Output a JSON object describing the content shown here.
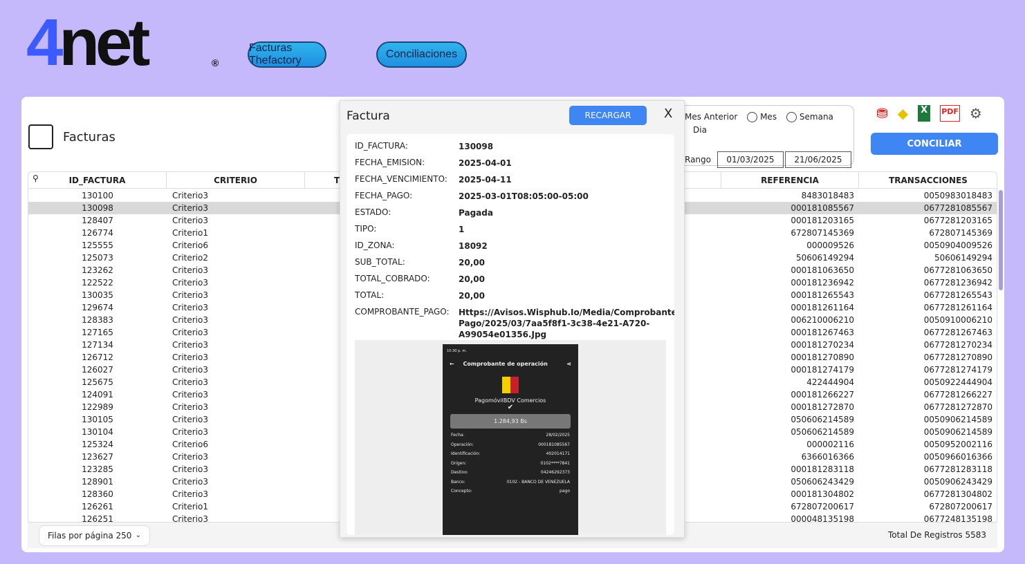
{
  "brand": {
    "logo_text": "4net",
    "registered": "®"
  },
  "nav": {
    "facturas": "Facturas Thefactory",
    "conciliaciones": "Conciliaciones"
  },
  "page": {
    "title": "Facturas"
  },
  "filter": {
    "mes_anterior": "Mes Anterior",
    "mes": "Mes",
    "semana": "Semana",
    "dia": "Dia",
    "rango": "Rango",
    "desde": "01/03/2025",
    "hasta": "21/06/2025"
  },
  "toolbar": {
    "conciliar": "CONCILIAR",
    "icons": [
      "bank-icon",
      "bdv-icon",
      "excel-icon",
      "pdf-icon",
      "gear-icon"
    ]
  },
  "table": {
    "headers": {
      "id": "ID_FACTURA",
      "criterio": "CRITERIO",
      "t": "T",
      "referencia": "REFERENCIA",
      "transacciones": "TRANSACCIONES"
    },
    "selected_index": 1,
    "rows": [
      [
        "130100",
        "Criterio3",
        "8483018483",
        "0050983018483"
      ],
      [
        "130098",
        "Criterio3",
        "000181085567",
        "0677281085567"
      ],
      [
        "128407",
        "Criterio3",
        "000181203165",
        "0677281203165"
      ],
      [
        "126774",
        "Criterio1",
        "672807145369",
        "672807145369"
      ],
      [
        "125555",
        "Criterio6",
        "000009526",
        "0050904009526"
      ],
      [
        "125073",
        "Criterio2",
        "50606149294",
        "50606149294"
      ],
      [
        "123262",
        "Criterio3",
        "000181063650",
        "0677281063650"
      ],
      [
        "122522",
        "Criterio3",
        "000181236942",
        "0677281236942"
      ],
      [
        "130035",
        "Criterio3",
        "000181265543",
        "0677281265543"
      ],
      [
        "129674",
        "Criterio3",
        "000181261164",
        "0677281261164"
      ],
      [
        "128383",
        "Criterio3",
        "006210006210",
        "0050910006210"
      ],
      [
        "127165",
        "Criterio3",
        "000181267463",
        "0677281267463"
      ],
      [
        "127134",
        "Criterio3",
        "000181270234",
        "0677281270234"
      ],
      [
        "126712",
        "Criterio3",
        "000181270890",
        "0677281270890"
      ],
      [
        "126027",
        "Criterio3",
        "000181274179",
        "0677281274179"
      ],
      [
        "125675",
        "Criterio3",
        "422444904",
        "0050922444904"
      ],
      [
        "124091",
        "Criterio3",
        "000181266227",
        "0677281266227"
      ],
      [
        "122989",
        "Criterio3",
        "000181272870",
        "0677281272870"
      ],
      [
        "130105",
        "Criterio3",
        "050606214589",
        "0050906214589"
      ],
      [
        "130104",
        "Criterio3",
        "050606214589",
        "0050906214589"
      ],
      [
        "125324",
        "Criterio6",
        "000002116",
        "0050952002116"
      ],
      [
        "123627",
        "Criterio3",
        "6366016366",
        "0050966016366"
      ],
      [
        "123285",
        "Criterio3",
        "000181283118",
        "0677281283118"
      ],
      [
        "128901",
        "Criterio3",
        "050606243429",
        "0050906243429"
      ],
      [
        "128360",
        "Criterio3",
        "000181304802",
        "0677281304802"
      ],
      [
        "126261",
        "Criterio1",
        "672807200617",
        "672807200617"
      ],
      [
        "126251",
        "Criterio3",
        "000048135198",
        "0677248135198"
      ]
    ]
  },
  "footer": {
    "per_page": "Filas por página 250",
    "total": "Total De Registros 5583"
  },
  "modal": {
    "title": "Factura",
    "reload": "RECARGAR",
    "close": "X",
    "fields": [
      [
        "ID_FACTURA:",
        "130098"
      ],
      [
        "FECHA_EMISION:",
        "2025-04-01"
      ],
      [
        "FECHA_VENCIMIENTO:",
        "2025-04-11"
      ],
      [
        "FECHA_PAGO:",
        "2025-03-01T08:05:00-05:00"
      ],
      [
        "ESTADO:",
        "Pagada"
      ],
      [
        "TIPO:",
        "1"
      ],
      [
        "ID_ZONA:",
        "18092"
      ],
      [
        "SUB_TOTAL:",
        "20,00"
      ],
      [
        "TOTAL_COBRADO:",
        "20,00"
      ],
      [
        "TOTAL:",
        "20,00"
      ],
      [
        "COMPROBANTE_PAGO:",
        "Https://Avisos.Wisphub.Io/Media/Comprobante-Pago/2025/03/7aa5f8f1-3c38-4e21-A720-A99054e01356.Jpg"
      ]
    ],
    "receipt": {
      "time": "10:30 p. m.",
      "title": "Comprobante de operación",
      "app": "PagomóvilBDV Comercios",
      "amount": "1.284,93 Bs",
      "rows": [
        [
          "Fecha:",
          "28/02/2025"
        ],
        [
          "Operación:",
          "000181085567"
        ],
        [
          "Identificación:",
          "402014171"
        ],
        [
          "Origen:",
          "0102****7841"
        ],
        [
          "Destino:",
          "04246292373"
        ],
        [
          "Banco:",
          "0102 - BANCO DE VENEZUELA"
        ],
        [
          "Concepto:",
          "pago"
        ]
      ]
    }
  }
}
